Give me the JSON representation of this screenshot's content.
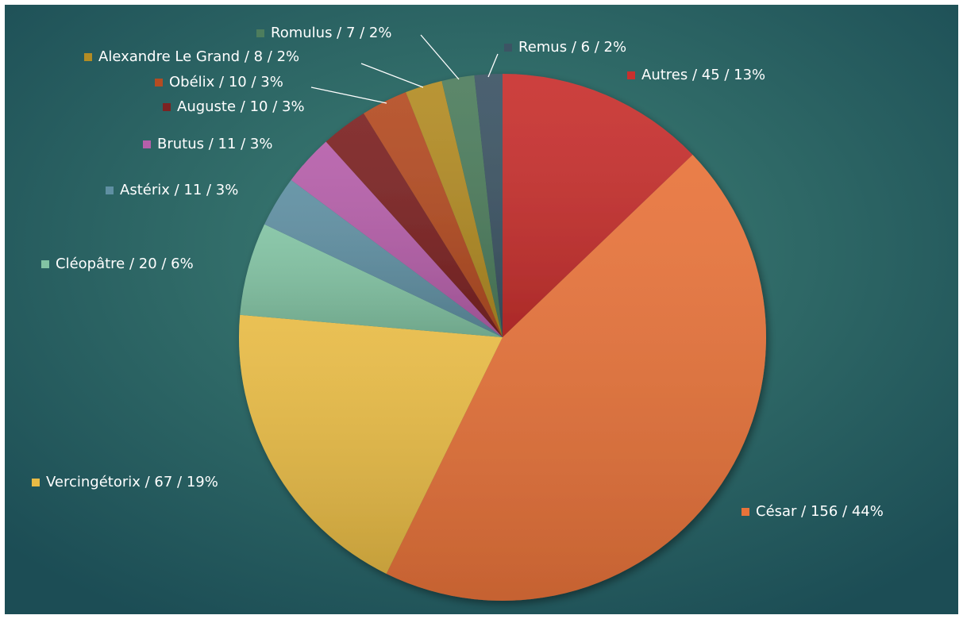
{
  "chart_data": {
    "type": "pie",
    "categories": [
      "Autres",
      "César",
      "Vercingétorix",
      "Cléopâtre",
      "Astérix",
      "Brutus",
      "Auguste",
      "Obélix",
      "Alexandre Le Grand",
      "Romulus",
      "Remus"
    ],
    "values": [
      45,
      156,
      67,
      20,
      11,
      11,
      10,
      10,
      8,
      7,
      6
    ],
    "value_labels": [
      "Autres / 45 / 13%",
      "César / 156 / 44%",
      "Vercingétorix / 67 / 19%",
      "Cléopâtre / 20 / 6%",
      "Astérix / 11 / 3%",
      "Brutus / 11 / 3%",
      "Auguste / 10 / 3%",
      "Obélix / 10 / 3%",
      "Alexandre Le Grand / 8 / 2%",
      "Romulus / 7 / 2%",
      "Remus / 6 / 2%"
    ],
    "colors": [
      "#c8302e",
      "#e8733a",
      "#e8bb45",
      "#82c3a3",
      "#5f8fa2",
      "#b65faa",
      "#7c2222",
      "#b44c22",
      "#b38c24",
      "#4d7d5d",
      "#3c5464"
    ]
  }
}
